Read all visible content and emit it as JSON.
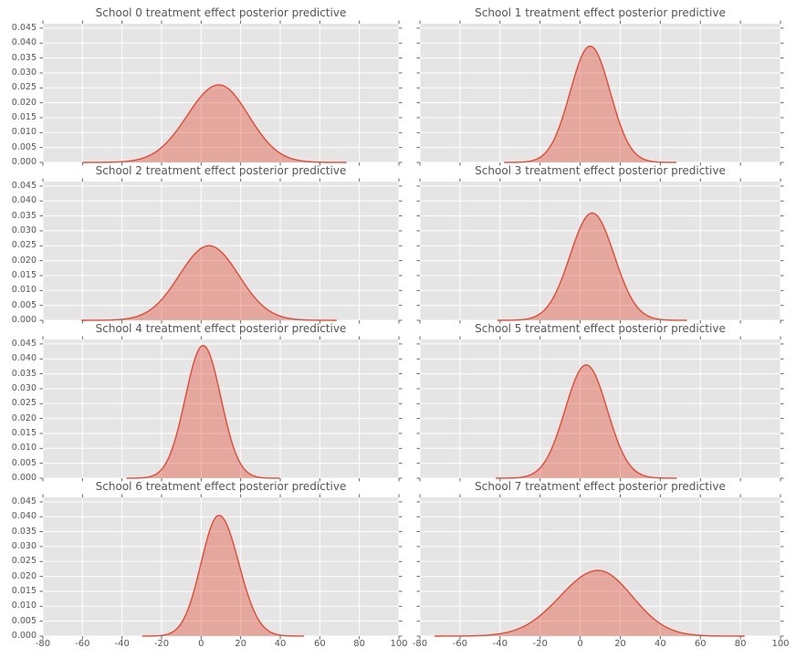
{
  "figure": {
    "background": "#ffffff"
  },
  "chart_data": {
    "type": "kde",
    "layout": {
      "rows": 4,
      "cols": 2,
      "shared_x": true,
      "shared_y": true
    },
    "xlim": [
      -80,
      100
    ],
    "ylim": [
      0,
      0.0465
    ],
    "x_ticks": [
      -80,
      -60,
      -40,
      -20,
      0,
      20,
      40,
      60,
      80,
      100
    ],
    "x_tick_labels": [
      "-80",
      "-60",
      "-40",
      "-20",
      "0",
      "20",
      "40",
      "60",
      "80",
      "100"
    ],
    "y_ticks": [
      0,
      0.005,
      0.01,
      0.015,
      0.02,
      0.025,
      0.03,
      0.035,
      0.04,
      0.045
    ],
    "y_tick_labels": [
      "0.000",
      "0.005",
      "0.010",
      "0.015",
      "0.020",
      "0.025",
      "0.030",
      "0.035",
      "0.040",
      "0.045"
    ],
    "grid": true,
    "legend": false,
    "style": {
      "plot_bg": "#e5e5e5",
      "grid_color": "#ffffff",
      "line_color": "#e24a33",
      "fill_color": "#e24a33",
      "fill_opacity": 0.4,
      "tick_color": "#555555",
      "label_color": "#555555",
      "title_color": "#555555"
    },
    "subplots": [
      {
        "title": "School 0 treatment effect posterior predictive",
        "kde": {
          "mean": 9,
          "sd_left": 16,
          "sd_right": 15,
          "peak": 0.026
        }
      },
      {
        "title": "School 1 treatment effect posterior predictive",
        "kde": {
          "mean": 5,
          "sd_left": 10,
          "sd_right": 10,
          "peak": 0.039
        }
      },
      {
        "title": "School 2 treatment effect posterior predictive",
        "kde": {
          "mean": 4,
          "sd_left": 15,
          "sd_right": 15,
          "peak": 0.025
        }
      },
      {
        "title": "School 3 treatment effect posterior predictive",
        "kde": {
          "mean": 6,
          "sd_left": 11,
          "sd_right": 11,
          "peak": 0.036
        }
      },
      {
        "title": "School 4 treatment effect posterior predictive",
        "kde": {
          "mean": 1,
          "sd_left": 9,
          "sd_right": 9,
          "peak": 0.0445
        }
      },
      {
        "title": "School 5 treatment effect posterior predictive",
        "kde": {
          "mean": 3,
          "sd_left": 10.5,
          "sd_right": 10.5,
          "peak": 0.038
        }
      },
      {
        "title": "School 6 treatment effect posterior predictive",
        "kde": {
          "mean": 9,
          "sd_left": 9,
          "sd_right": 10,
          "peak": 0.0405
        }
      },
      {
        "title": "School 7 treatment effect posterior predictive",
        "kde": {
          "mean": 9,
          "sd_left": 19,
          "sd_right": 17,
          "peak": 0.022
        }
      }
    ]
  }
}
